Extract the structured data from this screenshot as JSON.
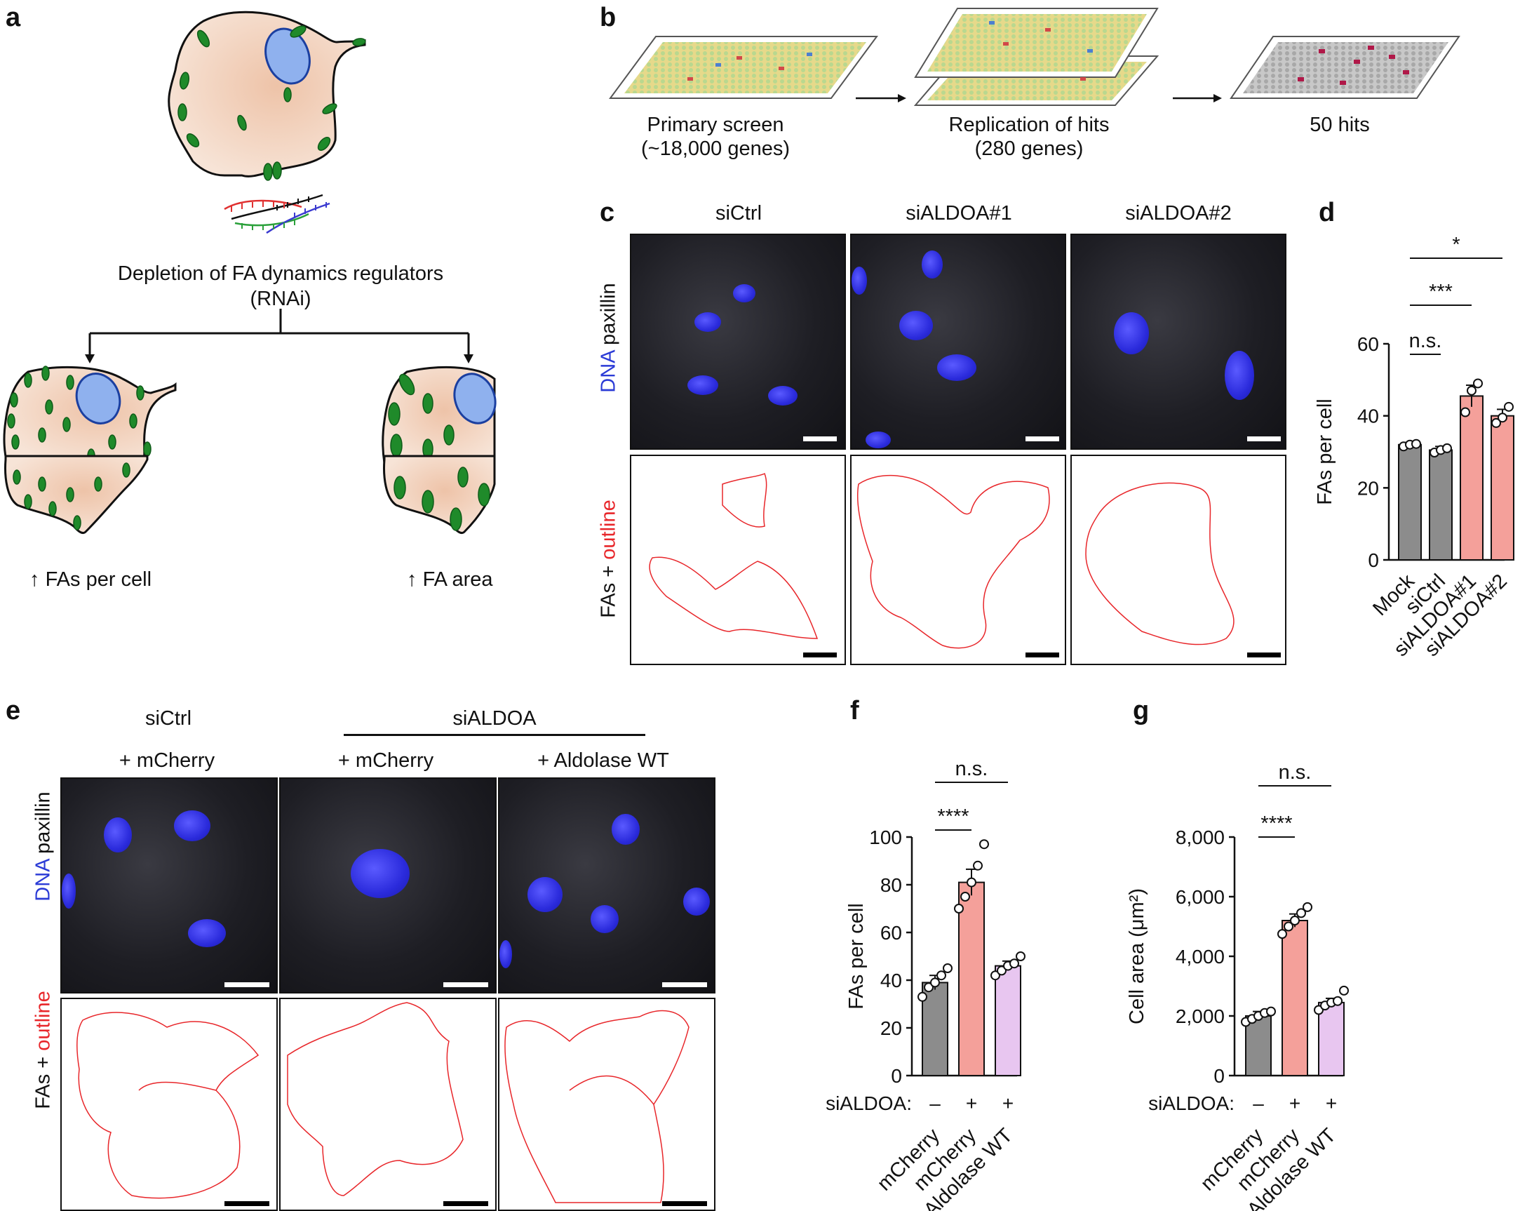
{
  "panel_labels": {
    "a": "a",
    "b": "b",
    "c": "c",
    "d": "d",
    "e": "e",
    "f": "f",
    "g": "g"
  },
  "panel_a": {
    "caption_line1": "Depletion of FA dynamics regulators",
    "caption_line2": "(RNAi)",
    "left_result": "FAs per cell",
    "right_result": "FA area"
  },
  "panel_b": {
    "step1_line1": "Primary screen",
    "step1_line2": "(~18,000 genes)",
    "step2_line1": "Replication of hits",
    "step2_line2": "(280 genes)",
    "step3_line1": "50 hits"
  },
  "panel_c": {
    "columns": [
      "siCtrl",
      "siALDOA#1",
      "siALDOA#2"
    ],
    "row1_label_colored": "DNA",
    "row1_label_rest": " paxillin",
    "row2_label_rest": "FAs + ",
    "row2_label_colored": "outline"
  },
  "panel_e": {
    "group_left": "siCtrl",
    "group_right": "siALDOA",
    "columns": [
      "+ mCherry",
      "+ mCherry",
      "+ Aldolase WT"
    ],
    "row1_label_colored": "DNA",
    "row1_label_rest": " paxillin",
    "row2_label_rest": "FAs + ",
    "row2_label_colored": "outline"
  },
  "colors": {
    "gray_bar": "#8c8c8c",
    "pink_bar": "#f4a09a",
    "lavender_bar": "#e8c6f0",
    "nucleus_blue": "#3434e0",
    "outline_red": "#e8262a",
    "cell_fill": "#f6dcc8",
    "fa_green": "#1f8a2a"
  },
  "chart_data": [
    {
      "panel": "d",
      "type": "bar",
      "categories": [
        "Mock",
        "siCtrl",
        "siALDOA#1",
        "siALDOA#2"
      ],
      "values": [
        32,
        30.5,
        45.5,
        40
      ],
      "errors": [
        0.6,
        1.0,
        3.0,
        1.8
      ],
      "points": [
        [
          31.5,
          32,
          32.2
        ],
        [
          29.8,
          30.5,
          31
        ],
        [
          41,
          47,
          49
        ],
        [
          38,
          39.5,
          42.5
        ]
      ],
      "bar_colors": [
        "#8c8c8c",
        "#8c8c8c",
        "#f4a09a",
        "#f4a09a"
      ],
      "ylabel": "FAs per cell",
      "ylim": [
        0,
        60
      ],
      "yticks": [
        "0",
        "20",
        "40",
        "60"
      ],
      "significance": [
        {
          "from": 0,
          "to": 1,
          "label": "n.s."
        },
        {
          "from": 0,
          "to": 2,
          "label": "***"
        },
        {
          "from": 0,
          "to": 3,
          "label": "*"
        }
      ]
    },
    {
      "panel": "f",
      "type": "bar",
      "categories": [
        "mCherry",
        "mCherry",
        "Aldolase WT"
      ],
      "row_label": "siALDOA:",
      "row_values": [
        "–",
        "+",
        "+"
      ],
      "values": [
        39,
        81,
        46
      ],
      "errors": [
        3,
        5.5,
        2
      ],
      "points": [
        [
          33,
          37,
          39,
          42,
          45
        ],
        [
          70,
          75,
          81,
          88,
          97
        ],
        [
          42,
          44,
          46,
          47,
          50
        ]
      ],
      "bar_colors": [
        "#8c8c8c",
        "#f4a09a",
        "#e8c6f0"
      ],
      "ylabel": "FAs per cell",
      "ylim": [
        0,
        100
      ],
      "yticks": [
        "0",
        "20",
        "40",
        "60",
        "80",
        "100"
      ],
      "significance": [
        {
          "from": 0,
          "to": 1,
          "label": "****"
        },
        {
          "from": 0,
          "to": 2,
          "label": "n.s."
        }
      ]
    },
    {
      "panel": "g",
      "type": "bar",
      "categories": [
        "mCherry",
        "mCherry",
        "Aldolase WT"
      ],
      "row_label": "siALDOA:",
      "row_values": [
        "–",
        "+",
        "+"
      ],
      "values": [
        2000,
        5200,
        2450
      ],
      "errors": [
        150,
        220,
        140
      ],
      "points": [
        [
          1800,
          1900,
          2000,
          2100,
          2150
        ],
        [
          4750,
          5000,
          5200,
          5450,
          5650
        ],
        [
          2200,
          2350,
          2450,
          2500,
          2850
        ]
      ],
      "bar_colors": [
        "#8c8c8c",
        "#f4a09a",
        "#e8c6f0"
      ],
      "ylabel": "Cell area (μm²)",
      "ylim": [
        0,
        8000
      ],
      "yticks": [
        "0",
        "2,000",
        "4,000",
        "6,000",
        "8,000"
      ],
      "significance": [
        {
          "from": 0,
          "to": 1,
          "label": "****"
        },
        {
          "from": 0,
          "to": 2,
          "label": "n.s."
        }
      ]
    }
  ]
}
